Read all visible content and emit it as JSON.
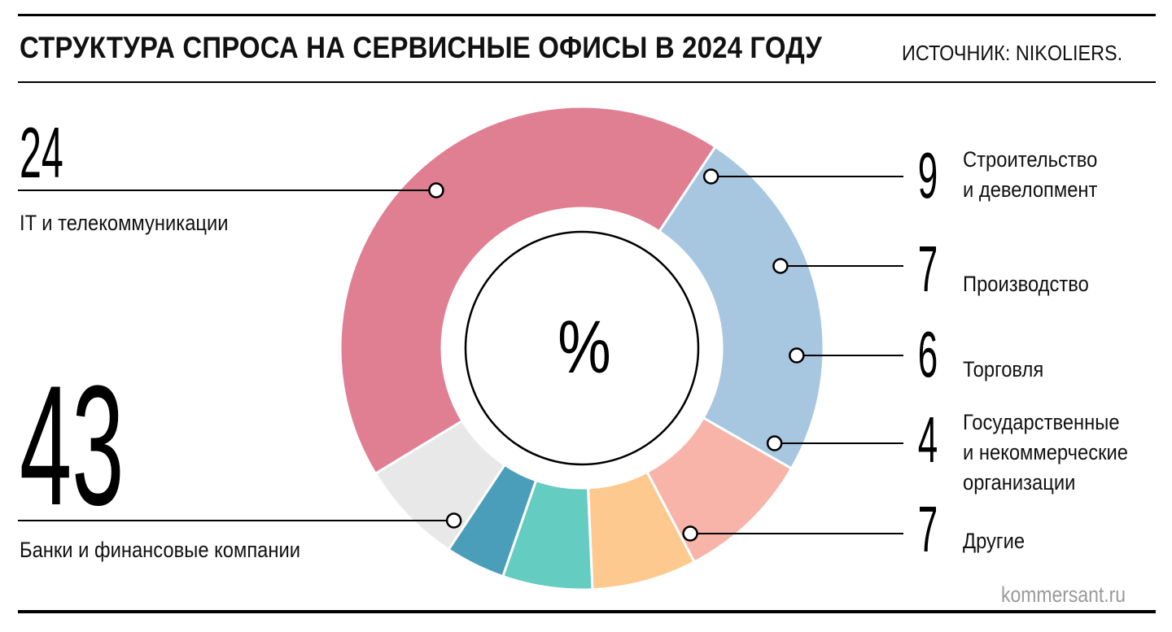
{
  "header": {
    "title": "СТРУКТУРА СПРОСА НА СЕРВИСНЫЕ ОФИСЫ В 2024 ГОДУ",
    "source": "ИСТОЧНИК: NIKOLIERS."
  },
  "footer": {
    "credit": "kommersant.ru"
  },
  "chart_data": {
    "type": "pie",
    "center_label": "%",
    "slices": [
      {
        "label": "IT и телекоммуникации",
        "value": 24,
        "color": "#a7c7e1"
      },
      {
        "label": "Строительство и девелопмент",
        "value": 9,
        "color": "#f8b4a9"
      },
      {
        "label": "Производство",
        "value": 7,
        "color": "#fdc98f"
      },
      {
        "label": "Торговля",
        "value": 6,
        "color": "#65ccc2"
      },
      {
        "label": "Государственные и некоммерческие организации",
        "value": 4,
        "color": "#4b9eba"
      },
      {
        "label": "Другие",
        "value": 7,
        "color": "#e8e8e8"
      },
      {
        "label": "Банки и финансовые компании",
        "value": 43,
        "color": "#e07e92"
      }
    ]
  }
}
